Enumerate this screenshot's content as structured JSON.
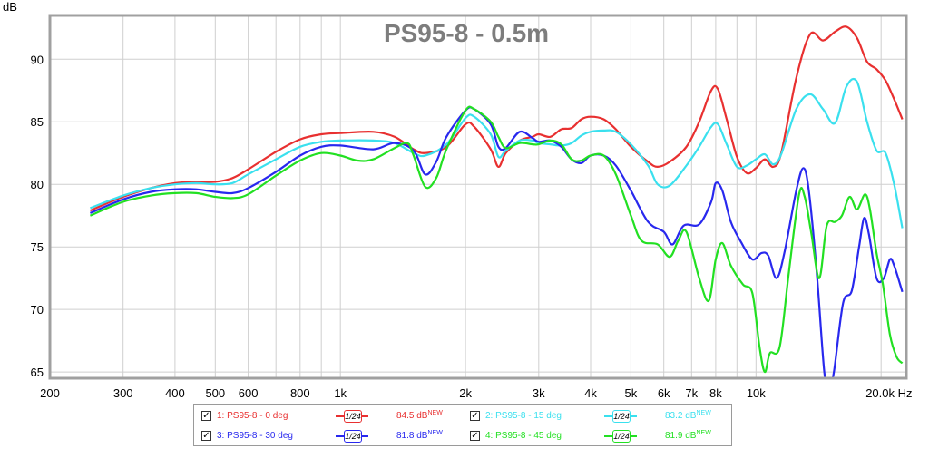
{
  "chart_data": {
    "type": "line",
    "title": "PS95-8 - 0.5m",
    "ylabel": "dB",
    "xlabel": "Hz",
    "x_scale": "log",
    "xlim": [
      200,
      23000
    ],
    "ylim": [
      64.5,
      93.5
    ],
    "grid": true,
    "x_ticks": [
      {
        "v": 200,
        "label": "200"
      },
      {
        "v": 300,
        "label": "300"
      },
      {
        "v": 400,
        "label": "400"
      },
      {
        "v": 500,
        "label": "500"
      },
      {
        "v": 600,
        "label": "600"
      },
      {
        "v": 800,
        "label": "800"
      },
      {
        "v": 1000,
        "label": "1k"
      },
      {
        "v": 2000,
        "label": "2k"
      },
      {
        "v": 3000,
        "label": "3k"
      },
      {
        "v": 4000,
        "label": "4k"
      },
      {
        "v": 5000,
        "label": "5k"
      },
      {
        "v": 6000,
        "label": "6k"
      },
      {
        "v": 7000,
        "label": "7k"
      },
      {
        "v": 8000,
        "label": "8k"
      },
      {
        "v": 10000,
        "label": "10k"
      },
      {
        "v": 20000,
        "label": "20.0k Hz"
      }
    ],
    "x_grid": [
      200,
      300,
      400,
      500,
      600,
      700,
      800,
      900,
      1000,
      2000,
      3000,
      4000,
      5000,
      6000,
      7000,
      8000,
      9000,
      10000,
      20000
    ],
    "y_ticks": [
      {
        "v": 65,
        "label": "65"
      },
      {
        "v": 70,
        "label": "70"
      },
      {
        "v": 75,
        "label": "75"
      },
      {
        "v": 80,
        "label": "80"
      },
      {
        "v": 85,
        "label": "85"
      },
      {
        "v": 90,
        "label": "90"
      }
    ],
    "series": [
      {
        "name": "1: PS95-8 - 0 deg",
        "color": "#e83030",
        "smoothing": "1/24",
        "level": "84.5 dB",
        "points": [
          [
            250,
            77.9
          ],
          [
            300,
            79.0
          ],
          [
            350,
            79.7
          ],
          [
            400,
            80.1
          ],
          [
            450,
            80.2
          ],
          [
            500,
            80.2
          ],
          [
            550,
            80.5
          ],
          [
            600,
            81.2
          ],
          [
            700,
            82.6
          ],
          [
            800,
            83.6
          ],
          [
            900,
            84.0
          ],
          [
            1000,
            84.1
          ],
          [
            1200,
            84.2
          ],
          [
            1350,
            83.8
          ],
          [
            1500,
            82.8
          ],
          [
            1600,
            82.5
          ],
          [
            1800,
            83.0
          ],
          [
            2000,
            84.8
          ],
          [
            2100,
            84.6
          ],
          [
            2300,
            82.8
          ],
          [
            2400,
            81.4
          ],
          [
            2500,
            82.5
          ],
          [
            2700,
            83.5
          ],
          [
            2900,
            83.8
          ],
          [
            3000,
            84.0
          ],
          [
            3200,
            83.8
          ],
          [
            3400,
            84.4
          ],
          [
            3600,
            84.5
          ],
          [
            3800,
            85.2
          ],
          [
            4000,
            85.4
          ],
          [
            4300,
            85.2
          ],
          [
            4600,
            84.4
          ],
          [
            5000,
            83.0
          ],
          [
            5500,
            81.8
          ],
          [
            5800,
            81.4
          ],
          [
            6200,
            81.8
          ],
          [
            6800,
            83.0
          ],
          [
            7300,
            85.0
          ],
          [
            7800,
            87.5
          ],
          [
            8100,
            87.6
          ],
          [
            8500,
            85.2
          ],
          [
            9000,
            82.2
          ],
          [
            9500,
            80.9
          ],
          [
            10000,
            81.3
          ],
          [
            10500,
            82.0
          ],
          [
            11000,
            81.4
          ],
          [
            11500,
            82.5
          ],
          [
            12500,
            88.5
          ],
          [
            13500,
            92.0
          ],
          [
            14500,
            91.5
          ],
          [
            15500,
            92.2
          ],
          [
            16500,
            92.6
          ],
          [
            17500,
            91.7
          ],
          [
            18500,
            89.8
          ],
          [
            19500,
            89.2
          ],
          [
            20500,
            88.3
          ],
          [
            21500,
            86.8
          ],
          [
            22500,
            85.2
          ]
        ]
      },
      {
        "name": "2: PS95-8 - 15 deg",
        "color": "#3ae0ee",
        "smoothing": "1/24",
        "level": "83.2 dB",
        "points": [
          [
            250,
            78.1
          ],
          [
            300,
            79.1
          ],
          [
            350,
            79.7
          ],
          [
            400,
            80.0
          ],
          [
            450,
            80.1
          ],
          [
            500,
            80.0
          ],
          [
            550,
            80.1
          ],
          [
            600,
            80.8
          ],
          [
            700,
            82.0
          ],
          [
            800,
            83.0
          ],
          [
            900,
            83.4
          ],
          [
            1000,
            83.5
          ],
          [
            1200,
            83.5
          ],
          [
            1350,
            83.3
          ],
          [
            1500,
            82.5
          ],
          [
            1600,
            82.3
          ],
          [
            1800,
            83.2
          ],
          [
            2000,
            85.3
          ],
          [
            2100,
            85.4
          ],
          [
            2300,
            84.0
          ],
          [
            2400,
            82.2
          ],
          [
            2500,
            82.7
          ],
          [
            2700,
            83.5
          ],
          [
            2900,
            83.5
          ],
          [
            3000,
            83.3
          ],
          [
            3200,
            83.2
          ],
          [
            3400,
            83.1
          ],
          [
            3600,
            83.3
          ],
          [
            3800,
            83.9
          ],
          [
            4000,
            84.2
          ],
          [
            4300,
            84.3
          ],
          [
            4600,
            84.2
          ],
          [
            5000,
            83.2
          ],
          [
            5500,
            81.5
          ],
          [
            5800,
            80.0
          ],
          [
            6200,
            79.9
          ],
          [
            6800,
            81.5
          ],
          [
            7300,
            83.0
          ],
          [
            7800,
            84.6
          ],
          [
            8100,
            84.8
          ],
          [
            8500,
            83.2
          ],
          [
            9000,
            81.4
          ],
          [
            9500,
            81.5
          ],
          [
            10000,
            82.0
          ],
          [
            10500,
            82.4
          ],
          [
            11000,
            81.6
          ],
          [
            11500,
            82.4
          ],
          [
            12500,
            86.0
          ],
          [
            13500,
            87.2
          ],
          [
            14500,
            86.0
          ],
          [
            15500,
            84.9
          ],
          [
            16500,
            87.8
          ],
          [
            17500,
            88.2
          ],
          [
            18500,
            85.0
          ],
          [
            19500,
            82.7
          ],
          [
            20500,
            82.5
          ],
          [
            21500,
            80.0
          ],
          [
            22500,
            76.5
          ]
        ]
      },
      {
        "name": "3: PS95-8 - 30 deg",
        "color": "#2828ee",
        "smoothing": "1/24",
        "level": "81.8 dB",
        "points": [
          [
            250,
            77.7
          ],
          [
            300,
            78.8
          ],
          [
            350,
            79.4
          ],
          [
            400,
            79.6
          ],
          [
            450,
            79.6
          ],
          [
            500,
            79.4
          ],
          [
            550,
            79.3
          ],
          [
            600,
            79.7
          ],
          [
            700,
            81.0
          ],
          [
            800,
            82.3
          ],
          [
            900,
            83.0
          ],
          [
            1000,
            83.1
          ],
          [
            1200,
            82.8
          ],
          [
            1350,
            83.3
          ],
          [
            1500,
            82.7
          ],
          [
            1600,
            80.8
          ],
          [
            1700,
            81.8
          ],
          [
            1800,
            83.8
          ],
          [
            2000,
            85.9
          ],
          [
            2100,
            86.0
          ],
          [
            2300,
            84.8
          ],
          [
            2400,
            83.0
          ],
          [
            2500,
            82.9
          ],
          [
            2700,
            84.2
          ],
          [
            2900,
            83.7
          ],
          [
            3000,
            83.4
          ],
          [
            3200,
            83.5
          ],
          [
            3400,
            83.0
          ],
          [
            3600,
            82.0
          ],
          [
            3800,
            81.7
          ],
          [
            4000,
            82.3
          ],
          [
            4300,
            82.3
          ],
          [
            4600,
            81.5
          ],
          [
            5000,
            79.5
          ],
          [
            5500,
            77.0
          ],
          [
            6000,
            76.2
          ],
          [
            6300,
            75.2
          ],
          [
            6700,
            76.7
          ],
          [
            7300,
            76.8
          ],
          [
            7800,
            78.6
          ],
          [
            8000,
            80.1
          ],
          [
            8300,
            79.5
          ],
          [
            8700,
            77.0
          ],
          [
            9200,
            75.4
          ],
          [
            9800,
            74.0
          ],
          [
            10300,
            74.5
          ],
          [
            10700,
            74.3
          ],
          [
            11200,
            72.5
          ],
          [
            11700,
            74.5
          ],
          [
            12500,
            79.5
          ],
          [
            13000,
            81.3
          ],
          [
            13400,
            79.5
          ],
          [
            14000,
            73.0
          ],
          [
            14600,
            65.0
          ],
          [
            15000,
            63.8
          ],
          [
            15400,
            65.0
          ],
          [
            16200,
            70.5
          ],
          [
            17000,
            71.5
          ],
          [
            17700,
            75.0
          ],
          [
            18200,
            77.3
          ],
          [
            18700,
            76.0
          ],
          [
            19500,
            72.5
          ],
          [
            20300,
            72.5
          ],
          [
            21000,
            74.0
          ],
          [
            21500,
            73.5
          ],
          [
            22500,
            71.4
          ]
        ]
      },
      {
        "name": "4: PS95-8 - 45 deg",
        "color": "#22e022",
        "smoothing": "1/24",
        "level": "81.9 dB",
        "points": [
          [
            250,
            77.5
          ],
          [
            300,
            78.6
          ],
          [
            350,
            79.1
          ],
          [
            400,
            79.3
          ],
          [
            450,
            79.3
          ],
          [
            500,
            79.0
          ],
          [
            550,
            78.9
          ],
          [
            600,
            79.2
          ],
          [
            700,
            80.7
          ],
          [
            800,
            81.9
          ],
          [
            900,
            82.5
          ],
          [
            1000,
            82.3
          ],
          [
            1100,
            81.9
          ],
          [
            1200,
            82.0
          ],
          [
            1350,
            82.9
          ],
          [
            1450,
            83.3
          ],
          [
            1500,
            82.3
          ],
          [
            1600,
            79.8
          ],
          [
            1700,
            80.5
          ],
          [
            1800,
            82.8
          ],
          [
            2000,
            85.9
          ],
          [
            2100,
            86.0
          ],
          [
            2300,
            85.0
          ],
          [
            2400,
            83.8
          ],
          [
            2500,
            82.9
          ],
          [
            2700,
            83.3
          ],
          [
            2900,
            83.2
          ],
          [
            3000,
            83.2
          ],
          [
            3200,
            83.5
          ],
          [
            3400,
            83.2
          ],
          [
            3600,
            82.0
          ],
          [
            3800,
            81.9
          ],
          [
            4000,
            82.3
          ],
          [
            4300,
            82.3
          ],
          [
            4600,
            80.8
          ],
          [
            5000,
            77.5
          ],
          [
            5300,
            75.5
          ],
          [
            5800,
            75.2
          ],
          [
            6200,
            74.2
          ],
          [
            6500,
            75.5
          ],
          [
            6800,
            76.2
          ],
          [
            7300,
            72.5
          ],
          [
            7700,
            70.7
          ],
          [
            8000,
            74.0
          ],
          [
            8300,
            75.3
          ],
          [
            8700,
            73.5
          ],
          [
            9300,
            72.0
          ],
          [
            9800,
            71.3
          ],
          [
            10200,
            67.0
          ],
          [
            10500,
            65.0
          ],
          [
            10800,
            66.5
          ],
          [
            11400,
            67.0
          ],
          [
            12000,
            73.0
          ],
          [
            12700,
            79.2
          ],
          [
            13100,
            79.0
          ],
          [
            13600,
            76.0
          ],
          [
            14200,
            72.5
          ],
          [
            14800,
            76.7
          ],
          [
            15500,
            77.0
          ],
          [
            16100,
            77.5
          ],
          [
            16800,
            79.0
          ],
          [
            17500,
            78.0
          ],
          [
            18300,
            79.2
          ],
          [
            18800,
            78.0
          ],
          [
            19500,
            74.5
          ],
          [
            20200,
            72.0
          ],
          [
            21000,
            68.0
          ],
          [
            21800,
            66.2
          ],
          [
            22500,
            65.7
          ]
        ]
      }
    ]
  }
}
